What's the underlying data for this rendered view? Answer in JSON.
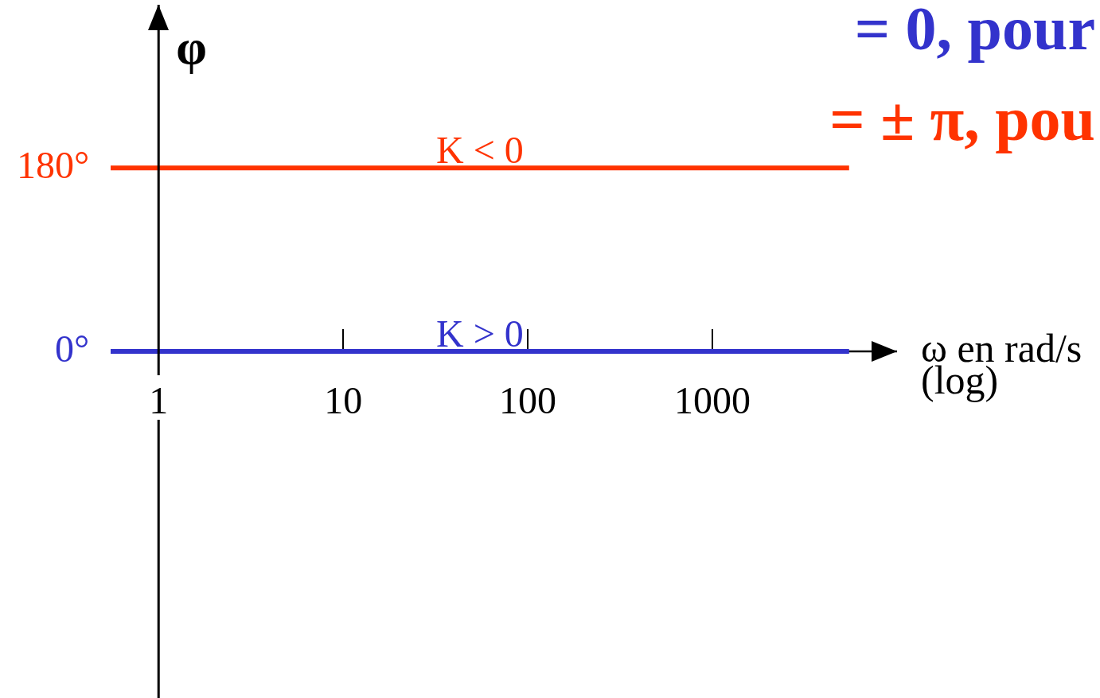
{
  "chart_data": {
    "type": "line",
    "x": [
      0.55,
      5500
    ],
    "series": [
      {
        "name": "K > 0",
        "color": "#3333cc",
        "values": [
          0,
          0
        ]
      },
      {
        "name": "K < 0",
        "color": "#ff3300",
        "values": [
          180,
          180
        ]
      }
    ],
    "xlabel": "ω en rad/s (log)",
    "ylabel": "φ",
    "xlim": [
      0.55,
      10000
    ],
    "xticks": [
      1,
      10,
      100,
      1000
    ],
    "ylim": [
      -340,
      340
    ],
    "yticks": [
      {
        "value": 0,
        "label": "0°"
      },
      {
        "value": 180,
        "label": "180°"
      }
    ],
    "log": "x",
    "marker": "none",
    "annotations": [
      "= 0, pour",
      "= ± π, pou"
    ]
  }
}
